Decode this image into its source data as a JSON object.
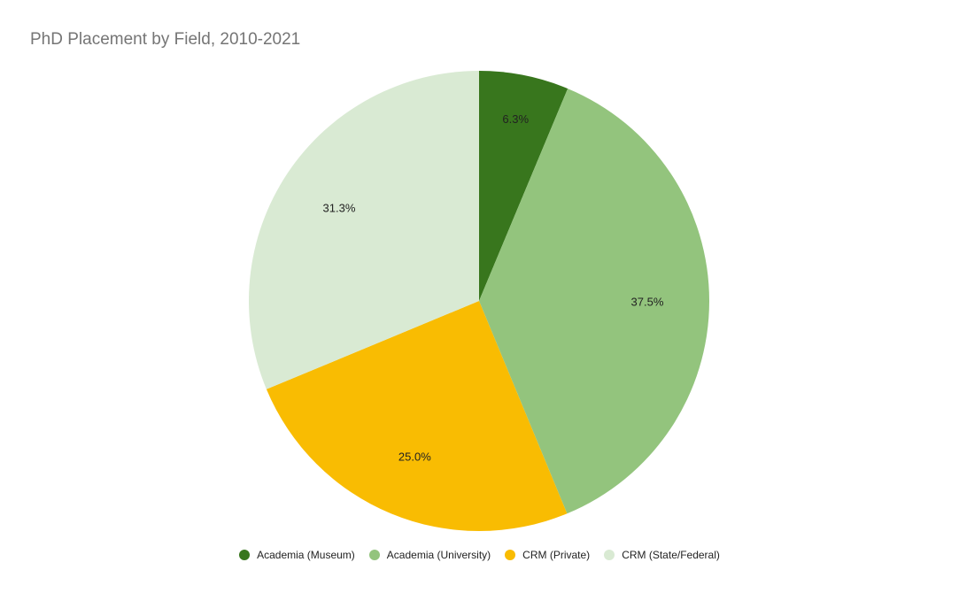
{
  "chart_data": {
    "type": "pie",
    "title": "PhD Placement by Field, 2010-2021",
    "categories": [
      "Academia (Museum)",
      "Academia (University)",
      "CRM (Private)",
      "CRM (State/Federal)"
    ],
    "values": [
      6.3,
      37.5,
      25.0,
      31.3
    ],
    "value_labels": [
      "6.3%",
      "37.5%",
      "25.0%",
      "31.3%"
    ],
    "colors": [
      "#38761d",
      "#93c47d",
      "#f9bc02",
      "#d9ead3"
    ],
    "legend_position": "bottom"
  }
}
